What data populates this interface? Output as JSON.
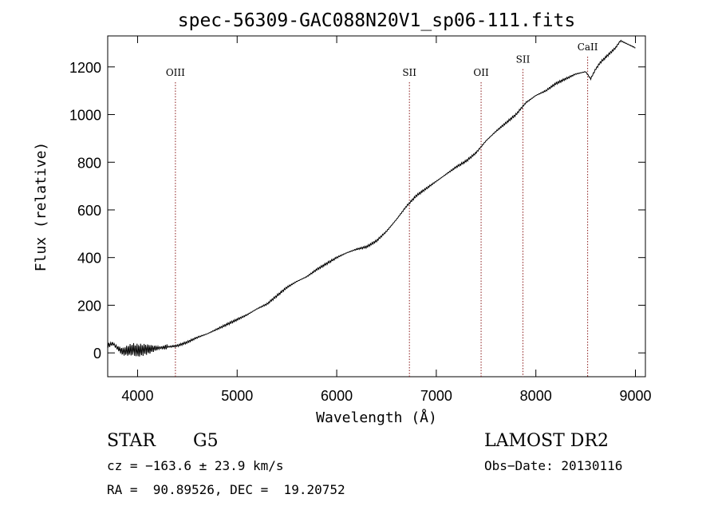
{
  "chart_data": {
    "type": "line",
    "title": "spec-56309-GAC088N20V1_sp06-111.fits",
    "xlabel": "Wavelength (Å)",
    "ylabel": "Flux (relative)",
    "xlim": [
      3700,
      9100
    ],
    "ylim": [
      -100,
      1330
    ],
    "xticks": [
      4000,
      5000,
      6000,
      7000,
      8000,
      9000
    ],
    "yticks": [
      0,
      200,
      400,
      600,
      800,
      1000,
      1200
    ],
    "grid": false,
    "legend": "none",
    "line_color": "#000000",
    "marker_color": "#8b1a1a",
    "lines": [
      {
        "label": "OIII",
        "x": 4380
      },
      {
        "label": "SII",
        "x": 6730
      },
      {
        "label": "OII",
        "x": 7450
      },
      {
        "label": "SII",
        "x": 7870
      },
      {
        "label": "CaII",
        "x": 8520
      }
    ],
    "series": [
      {
        "x": [
          3700,
          3750,
          3800,
          3850,
          3900,
          3950,
          4000,
          4100,
          4200,
          4300,
          4400,
          4500,
          4600,
          4700,
          4800,
          4900,
          5000,
          5100,
          5200,
          5300,
          5400,
          5500,
          5600,
          5700,
          5800,
          5900,
          6000,
          6100,
          6200,
          6300,
          6400,
          6500,
          6600,
          6700,
          6800,
          6900,
          7000,
          7100,
          7200,
          7300,
          7400,
          7500,
          7600,
          7700,
          7800,
          7900,
          8000,
          8100,
          8200,
          8300,
          8400,
          8500,
          8550,
          8600,
          8650,
          8700,
          8800,
          8850,
          8900,
          8950,
          9000
        ],
        "y": [
          30,
          40,
          20,
          5,
          10,
          15,
          10,
          15,
          20,
          25,
          30,
          45,
          65,
          80,
          100,
          120,
          140,
          160,
          185,
          205,
          240,
          275,
          300,
          320,
          350,
          375,
          400,
          420,
          435,
          445,
          470,
          510,
          560,
          615,
          660,
          690,
          720,
          750,
          780,
          805,
          840,
          890,
          930,
          965,
          1000,
          1050,
          1080,
          1100,
          1130,
          1150,
          1170,
          1180,
          1150,
          1190,
          1220,
          1240,
          1280,
          1310,
          1300,
          1290,
          1280
        ]
      }
    ]
  },
  "info": {
    "object_class": "STAR",
    "subclass": "G5",
    "survey": "LAMOST DR2",
    "cz": "cz = −163.6 ± 23.9 km/s",
    "obs_date": "Obs−Date: 20130116",
    "coords": "RA =  90.89526, DEC =  19.20752"
  }
}
